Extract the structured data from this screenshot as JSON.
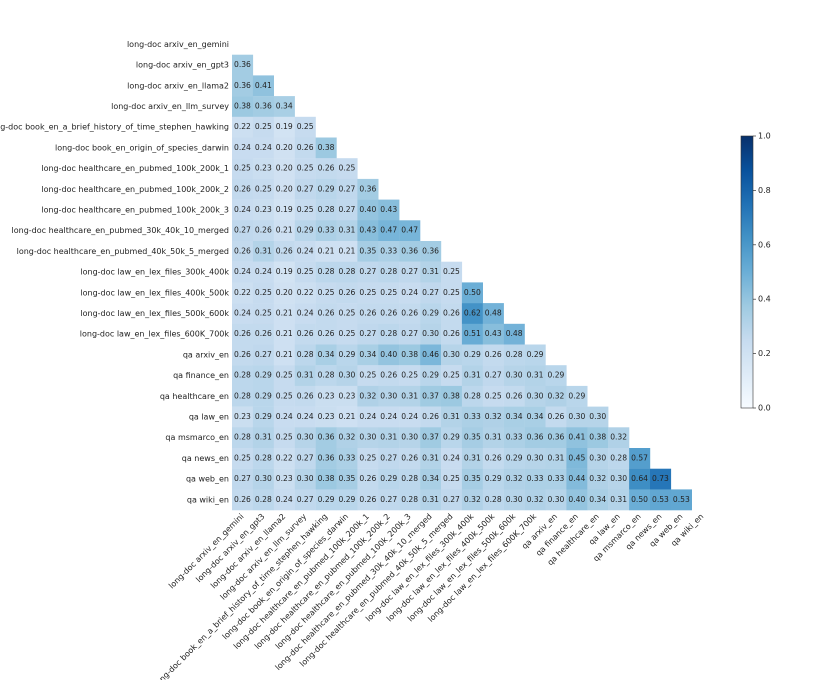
{
  "chart_data": {
    "type": "heatmap",
    "labels": [
      "long-doc arxiv_en_gemini",
      "long-doc arxiv_en_gpt3",
      "long-doc arxiv_en_llama2",
      "long-doc arxiv_en_llm_survey",
      "long-doc book_en_a_brief_history_of_time_stephen_hawking",
      "long-doc book_en_origin_of_species_darwin",
      "long-doc healthcare_en_pubmed_100k_200k_1",
      "long-doc healthcare_en_pubmed_100k_200k_2",
      "long-doc healthcare_en_pubmed_100k_200k_3",
      "long-doc healthcare_en_pubmed_30k_40k_10_merged",
      "long-doc healthcare_en_pubmed_40k_50k_5_merged",
      "long-doc law_en_lex_files_300k_400k",
      "long-doc law_en_lex_files_400k_500k",
      "long-doc law_en_lex_files_500k_600k",
      "long-doc law_en_lex_files_600K_700k",
      "qa arxiv_en",
      "qa finance_en",
      "qa healthcare_en",
      "qa law_en",
      "qa msmarco_en",
      "qa news_en",
      "qa web_en",
      "qa wiki_en"
    ],
    "values": [
      [],
      [
        0.36
      ],
      [
        0.36,
        0.41
      ],
      [
        0.38,
        0.36,
        0.34
      ],
      [
        0.22,
        0.25,
        0.19,
        0.25
      ],
      [
        0.24,
        0.24,
        0.2,
        0.26,
        0.38
      ],
      [
        0.25,
        0.23,
        0.2,
        0.25,
        0.26,
        0.25
      ],
      [
        0.26,
        0.25,
        0.2,
        0.27,
        0.29,
        0.27,
        0.36
      ],
      [
        0.24,
        0.23,
        0.19,
        0.25,
        0.28,
        0.27,
        0.4,
        0.43
      ],
      [
        0.27,
        0.26,
        0.21,
        0.29,
        0.33,
        0.31,
        0.43,
        0.47,
        0.47
      ],
      [
        0.26,
        0.31,
        0.26,
        0.24,
        0.21,
        0.21,
        0.35,
        0.33,
        0.36,
        0.36
      ],
      [
        0.24,
        0.24,
        0.19,
        0.25,
        0.28,
        0.28,
        0.27,
        0.28,
        0.27,
        0.31,
        0.25
      ],
      [
        0.22,
        0.25,
        0.2,
        0.22,
        0.25,
        0.26,
        0.25,
        0.25,
        0.24,
        0.27,
        0.25,
        0.5
      ],
      [
        0.24,
        0.25,
        0.21,
        0.24,
        0.26,
        0.25,
        0.26,
        0.26,
        0.26,
        0.29,
        0.26,
        0.62,
        0.48
      ],
      [
        0.26,
        0.26,
        0.21,
        0.26,
        0.26,
        0.25,
        0.27,
        0.28,
        0.27,
        0.3,
        0.26,
        0.51,
        0.43,
        0.48
      ],
      [
        0.26,
        0.27,
        0.21,
        0.28,
        0.34,
        0.29,
        0.34,
        0.4,
        0.38,
        0.46,
        0.3,
        0.29,
        0.26,
        0.28,
        0.29
      ],
      [
        0.28,
        0.29,
        0.25,
        0.31,
        0.28,
        0.3,
        0.25,
        0.26,
        0.25,
        0.29,
        0.25,
        0.31,
        0.27,
        0.3,
        0.31,
        0.29
      ],
      [
        0.28,
        0.29,
        0.25,
        0.26,
        0.23,
        0.23,
        0.32,
        0.3,
        0.31,
        0.37,
        0.38,
        0.28,
        0.25,
        0.26,
        0.3,
        0.32,
        0.29
      ],
      [
        0.23,
        0.29,
        0.24,
        0.24,
        0.23,
        0.21,
        0.24,
        0.24,
        0.24,
        0.26,
        0.31,
        0.33,
        0.32,
        0.34,
        0.34,
        0.26,
        0.3,
        0.3
      ],
      [
        0.28,
        0.31,
        0.25,
        0.3,
        0.36,
        0.32,
        0.3,
        0.31,
        0.3,
        0.37,
        0.29,
        0.35,
        0.31,
        0.33,
        0.36,
        0.36,
        0.41,
        0.38,
        0.32
      ],
      [
        0.25,
        0.28,
        0.22,
        0.27,
        0.36,
        0.33,
        0.25,
        0.27,
        0.26,
        0.31,
        0.24,
        0.31,
        0.26,
        0.29,
        0.3,
        0.31,
        0.45,
        0.3,
        0.28,
        0.57
      ],
      [
        0.27,
        0.3,
        0.23,
        0.3,
        0.38,
        0.35,
        0.26,
        0.29,
        0.28,
        0.34,
        0.25,
        0.35,
        0.29,
        0.32,
        0.33,
        0.33,
        0.44,
        0.32,
        0.3,
        0.64,
        0.73
      ],
      [
        0.26,
        0.28,
        0.24,
        0.27,
        0.29,
        0.29,
        0.26,
        0.27,
        0.28,
        0.31,
        0.27,
        0.32,
        0.28,
        0.3,
        0.32,
        0.3,
        0.4,
        0.34,
        0.31,
        0.5,
        0.53,
        0.53
      ]
    ],
    "value_labels": [
      [],
      [
        "0.36"
      ],
      [
        "0.36",
        "0.41"
      ],
      [
        "0.38",
        "0.36",
        "0.34"
      ],
      [
        "0.22",
        "0.25",
        "0.19",
        "0.25"
      ],
      [
        "0.24",
        "0.24",
        "0.20",
        "0.26",
        "0.38"
      ],
      [
        "0.25",
        "0.23",
        "0.20",
        "0.25",
        "0.26",
        "0.25"
      ],
      [
        "0.26",
        "0.25",
        "0.20",
        "0.27",
        "0.29",
        "0.27",
        "0.36"
      ],
      [
        "0.24",
        "0.23",
        "0.19",
        "0.25",
        "0.28",
        "0.27",
        "0.40",
        "0.43"
      ],
      [
        "0.27",
        "0.26",
        "0.21",
        "0.29",
        "0.33",
        "0.31",
        "0.43",
        "0.47",
        "0.47"
      ],
      [
        "0.26",
        "0.31",
        "0.26",
        "0.24",
        "0.21",
        "0.21",
        "0.35",
        "0.33",
        "0.36",
        "0.36"
      ],
      [
        "0.24",
        "0.24",
        "0.19",
        "0.25",
        "0.28",
        "0.28",
        "0.27",
        "0.28",
        "0.27",
        "0.31",
        "0.25"
      ],
      [
        "0.22",
        "0.25",
        "0.20",
        "0.22",
        "0.25",
        "0.26",
        "0.25",
        "0.25",
        "0.24",
        "0.27",
        "0.25",
        "0.50"
      ],
      [
        "0.24",
        "0.25",
        "0.21",
        "0.24",
        "0.26",
        "0.25",
        "0.26",
        "0.26",
        "0.26",
        "0.29",
        "0.26",
        "0.62",
        "0.48"
      ],
      [
        "0.26",
        "0.26",
        "0.21",
        "0.26",
        "0.26",
        "0.25",
        "0.27",
        "0.28",
        "0.27",
        "0.30",
        "0.26",
        "0.51",
        "0.43",
        "0.48"
      ],
      [
        "0.26",
        "0.27",
        "0.21",
        "0.28",
        "0.34",
        "0.29",
        "0.34",
        "0.40",
        "0.38",
        "0.46",
        "0.30",
        "0.29",
        "0.26",
        "0.28",
        "0.29"
      ],
      [
        "0.28",
        "0.29",
        "0.25",
        "0.31",
        "0.28",
        "0.30",
        "0.25",
        "0.26",
        "0.25",
        "0.29",
        "0.25",
        "0.31",
        "0.27",
        "0.30",
        "0.31",
        "0.29"
      ],
      [
        "0.28",
        "0.29",
        "0.25",
        "0.26",
        "0.23",
        "0.23",
        "0.32",
        "0.30",
        "0.31",
        "0.37",
        "0.38",
        "0.28",
        "0.25",
        "0.26",
        "0.30",
        "0.32",
        "0.29"
      ],
      [
        "0.23",
        "0.29",
        "0.24",
        "0.24",
        "0.23",
        "0.21",
        "0.24",
        "0.24",
        "0.24",
        "0.26",
        "0.31",
        "0.33",
        "0.32",
        "0.34",
        "0.34",
        "0.26",
        "0.30",
        "0.30"
      ],
      [
        "0.28",
        "0.31",
        "0.25",
        "0.30",
        "0.36",
        "0.32",
        "0.30",
        "0.31",
        "0.30",
        "0.37",
        "0.29",
        "0.35",
        "0.31",
        "0.33",
        "0.36",
        "0.36",
        "0.41",
        "0.38",
        "0.32"
      ],
      [
        "0.25",
        "0.28",
        "0.22",
        "0.27",
        "0.36",
        "0.33",
        "0.25",
        "0.27",
        "0.26",
        "0.31",
        "0.24",
        "0.31",
        "0.26",
        "0.29",
        "0.30",
        "0.31",
        "0.45",
        "0.30",
        "0.28",
        "0.57"
      ],
      [
        "0.27",
        "0.30",
        "0.23",
        "0.30",
        "0.38",
        "0.35",
        "0.26",
        "0.29",
        "0.28",
        "0.34",
        "0.25",
        "0.35",
        "0.29",
        "0.32",
        "0.33",
        "0.33",
        "0.44",
        "0.32",
        "0.30",
        "0.64",
        "0.73"
      ],
      [
        "0.26",
        "0.28",
        "0.24",
        "0.27",
        "0.29",
        "0.29",
        "0.26",
        "0.27",
        "0.28",
        "0.31",
        "0.27",
        "0.32",
        "0.28",
        "0.30",
        "0.32",
        "0.30",
        "0.40",
        "0.34",
        "0.31",
        "0.50",
        "0.53",
        "0.53"
      ]
    ],
    "colormap": "Blues",
    "clim": [
      0,
      1
    ],
    "cticks": [
      {
        "value": 0,
        "label": "0.0"
      },
      0.2,
      0.4,
      0.6,
      0.8,
      {
        "value": 1,
        "label": "1.0"
      }
    ]
  }
}
